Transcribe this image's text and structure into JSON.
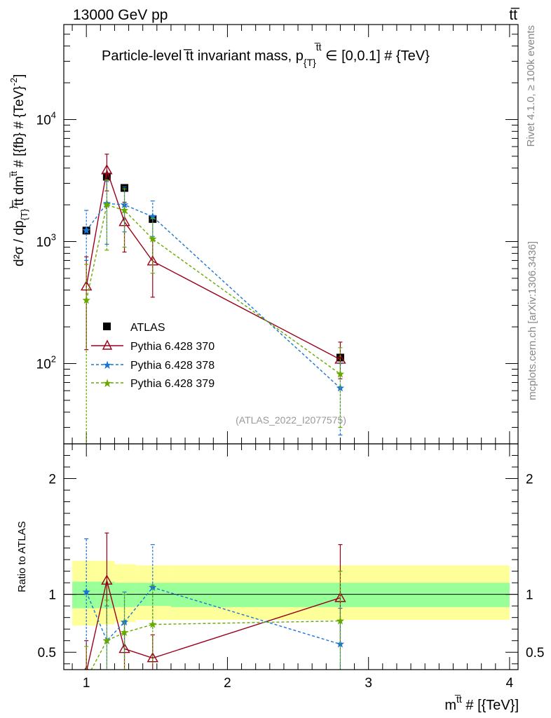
{
  "header": {
    "energy_label": "13000 GeV pp",
    "process_label": "tt̅"
  },
  "side_labels": {
    "rivet": "Rivet 4.1.0, ≥ 100k events",
    "mcplots": "mcplots.cern.ch [arXiv:1306.3436]"
  },
  "chart_data": [
    {
      "type": "line",
      "title_main": "Particle-level t̅t invariant mass, p",
      "title_sub": "{T}",
      "title_sup": "t̅t",
      "title_tail": " ∈ [0,0.1] # {TeV}",
      "ylabel_main": "d²σ / dp",
      "ylabel_sub": "{T}",
      "ylabel_sup": "}",
      "ylabel_rest": "t̅t dm",
      "ylabel_sup2": "t̅t",
      "ylabel_tail": " # [{fb} # {TeV}",
      "ylabel_sup3": "-2",
      "ylabel_close": "]",
      "yscale": "log",
      "ylim": [
        22,
        60000
      ],
      "xlim": [
        0.84,
        4.06
      ],
      "y_ticks": [
        {
          "value": 100,
          "base": "10",
          "exp": "2"
        },
        {
          "value": 1000,
          "base": "10",
          "exp": "3"
        },
        {
          "value": 10000,
          "base": "10",
          "exp": "4"
        }
      ],
      "watermark": "(ATLAS_2022_I2077575)",
      "legend_position": "middle-left",
      "series": [
        {
          "name": "ATLAS",
          "style": "data",
          "color": "#000000",
          "x": [
            1.0,
            1.145,
            1.27,
            1.47,
            2.8
          ],
          "y": [
            1230,
            3400,
            2750,
            1530,
            112
          ],
          "ylo": [
            1230,
            3400,
            2750,
            1530,
            112
          ],
          "yhi": [
            1230,
            3400,
            2750,
            1530,
            112
          ]
        },
        {
          "name": "Pythia 6.428 370",
          "style": "solid",
          "color": "#99001a",
          "marker": "triangle",
          "x": [
            1.0,
            1.145,
            1.27,
            1.47,
            2.8
          ],
          "y": [
            430,
            3850,
            1450,
            690,
            108
          ],
          "ylo": [
            130,
            2600,
            820,
            350,
            75
          ],
          "yhi": [
            750,
            5200,
            2100,
            1050,
            150
          ]
        },
        {
          "name": "Pythia 6.428 378",
          "style": "dashed",
          "color": "#1a75d2",
          "marker": "star",
          "x": [
            1.0,
            1.145,
            1.27,
            1.47,
            2.8
          ],
          "y": [
            1230,
            2050,
            2000,
            1600,
            63
          ],
          "ylo": [
            700,
            950,
            1200,
            1100,
            26
          ],
          "yhi": [
            1800,
            3100,
            2800,
            2150,
            100
          ]
        },
        {
          "name": "Pythia 6.428 379",
          "style": "dashed",
          "color": "#66aa00",
          "marker": "star",
          "x": [
            1.0,
            1.145,
            1.27,
            1.47,
            2.8
          ],
          "y": [
            330,
            2000,
            1800,
            1050,
            82
          ],
          "ylo": [
            20,
            850,
            900,
            550,
            30
          ],
          "yhi": [
            650,
            3200,
            2700,
            1550,
            135
          ]
        }
      ]
    },
    {
      "type": "line",
      "ylabel": "Ratio to ATLAS",
      "xlabel_main": "m",
      "xlabel_sup": "t̅t",
      "xlabel_tail": " # [{TeV}]",
      "ylim": [
        0.35,
        2.3
      ],
      "xlim": [
        0.84,
        4.06
      ],
      "x_ticks": [
        {
          "value": 1,
          "label": "1"
        },
        {
          "value": 2,
          "label": "2"
        },
        {
          "value": 3,
          "label": "3"
        },
        {
          "value": 4,
          "label": "4"
        }
      ],
      "y_ticks": [
        {
          "value": 0.5,
          "label": "0.5"
        },
        {
          "value": 1,
          "label": "1"
        },
        {
          "value": 2,
          "label": "2"
        }
      ],
      "bands": {
        "stat_color": "#99ff99",
        "total_color": "#ffff99",
        "bins": [
          {
            "x0": 0.9,
            "x1": 1.07,
            "stat": [
              0.88,
              1.11
            ],
            "total": [
              0.73,
              1.29
            ]
          },
          {
            "x0": 1.07,
            "x1": 1.2,
            "stat": [
              0.88,
              1.11
            ],
            "total": [
              0.74,
              1.29
            ]
          },
          {
            "x0": 1.2,
            "x1": 1.35,
            "stat": [
              0.89,
              1.1
            ],
            "total": [
              0.76,
              1.26
            ]
          },
          {
            "x0": 1.35,
            "x1": 1.6,
            "stat": [
              0.9,
              1.1
            ],
            "total": [
              0.78,
              1.25
            ]
          },
          {
            "x0": 1.6,
            "x1": 4.0,
            "stat": [
              0.89,
              1.1
            ],
            "total": [
              0.78,
              1.25
            ]
          }
        ]
      },
      "series": [
        {
          "name": "Pythia 6.428 370",
          "style": "solid",
          "color": "#99001a",
          "marker": "triangle",
          "x": [
            1.0,
            1.145,
            1.27,
            1.47,
            2.8
          ],
          "y": [
            0.33,
            1.12,
            0.53,
            0.45,
            0.97
          ],
          "ylo": [
            0.1,
            0.75,
            0.3,
            0.25,
            0.6
          ],
          "yhi": [
            0.6,
            1.53,
            0.75,
            0.65,
            1.43
          ]
        },
        {
          "name": "Pythia 6.428 378",
          "style": "dashed",
          "color": "#1a75d2",
          "marker": "star",
          "x": [
            1.0,
            1.145,
            1.27,
            1.47,
            2.8
          ],
          "y": [
            1.02,
            0.6,
            0.76,
            1.06,
            0.57
          ],
          "ylo": [
            0.58,
            0.3,
            0.45,
            0.7,
            0.25
          ],
          "yhi": [
            1.48,
            0.9,
            1.02,
            1.43,
            0.88
          ]
        },
        {
          "name": "Pythia 6.428 379",
          "style": "dashed",
          "color": "#66aa00",
          "marker": "star",
          "x": [
            1.0,
            1.145,
            1.27,
            1.47,
            2.8
          ],
          "y": [
            0.27,
            0.6,
            0.67,
            0.74,
            0.77
          ],
          "ylo": [
            0.05,
            0.25,
            0.35,
            0.4,
            0.3
          ],
          "yhi": [
            0.55,
            0.95,
            1.0,
            1.08,
            1.2
          ]
        }
      ]
    }
  ]
}
